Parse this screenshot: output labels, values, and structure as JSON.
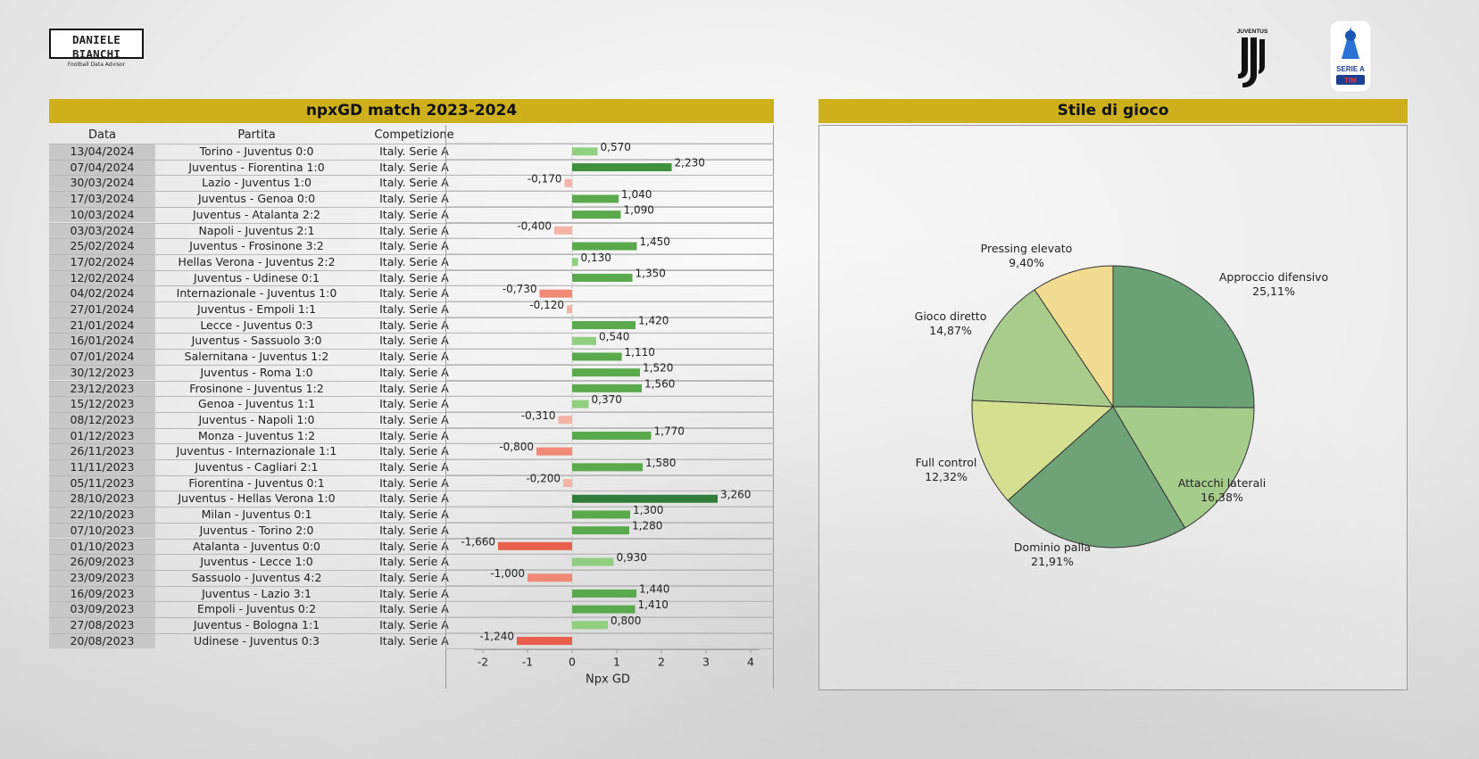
{
  "brand": {
    "name": "DANIELE BIANCHI",
    "tagline": "Football Data Advisor"
  },
  "logos": {
    "club": "JUVENTUS",
    "league_line1": "SERIE A",
    "league_line2": "TIM"
  },
  "table": {
    "title": "npxGD match 2023-2024",
    "headers": {
      "date": "Data",
      "match": "Partita",
      "competition": "Competizione"
    },
    "rows": [
      {
        "date": "13/04/2024",
        "match": "Torino - Juventus 0:0",
        "competition": "Italy. Serie A"
      },
      {
        "date": "07/04/2024",
        "match": "Juventus - Fiorentina 1:0",
        "competition": "Italy. Serie A"
      },
      {
        "date": "30/03/2024",
        "match": "Lazio - Juventus 1:0",
        "competition": "Italy. Serie A"
      },
      {
        "date": "17/03/2024",
        "match": "Juventus - Genoa 0:0",
        "competition": "Italy. Serie A"
      },
      {
        "date": "10/03/2024",
        "match": "Juventus - Atalanta 2:2",
        "competition": "Italy. Serie A"
      },
      {
        "date": "03/03/2024",
        "match": "Napoli - Juventus 2:1",
        "competition": "Italy. Serie A"
      },
      {
        "date": "25/02/2024",
        "match": "Juventus - Frosinone 3:2",
        "competition": "Italy. Serie A"
      },
      {
        "date": "17/02/2024",
        "match": "Hellas Verona - Juventus 2:2",
        "competition": "Italy. Serie A"
      },
      {
        "date": "12/02/2024",
        "match": "Juventus - Udinese 0:1",
        "competition": "Italy. Serie A"
      },
      {
        "date": "04/02/2024",
        "match": "Internazionale - Juventus 1:0",
        "competition": "Italy. Serie A"
      },
      {
        "date": "27/01/2024",
        "match": "Juventus - Empoli 1:1",
        "competition": "Italy. Serie A"
      },
      {
        "date": "21/01/2024",
        "match": "Lecce - Juventus 0:3",
        "competition": "Italy. Serie A"
      },
      {
        "date": "16/01/2024",
        "match": "Juventus - Sassuolo 3:0",
        "competition": "Italy. Serie A"
      },
      {
        "date": "07/01/2024",
        "match": "Salernitana - Juventus 1:2",
        "competition": "Italy. Serie A"
      },
      {
        "date": "30/12/2023",
        "match": "Juventus - Roma 1:0",
        "competition": "Italy. Serie A"
      },
      {
        "date": "23/12/2023",
        "match": "Frosinone - Juventus 1:2",
        "competition": "Italy. Serie A"
      },
      {
        "date": "15/12/2023",
        "match": "Genoa - Juventus 1:1",
        "competition": "Italy. Serie A"
      },
      {
        "date": "08/12/2023",
        "match": "Juventus - Napoli 1:0",
        "competition": "Italy. Serie A"
      },
      {
        "date": "01/12/2023",
        "match": "Monza - Juventus 1:2",
        "competition": "Italy. Serie A"
      },
      {
        "date": "26/11/2023",
        "match": "Juventus - Internazionale 1:1",
        "competition": "Italy. Serie A"
      },
      {
        "date": "11/11/2023",
        "match": "Juventus - Cagliari 2:1",
        "competition": "Italy. Serie A"
      },
      {
        "date": "05/11/2023",
        "match": "Fiorentina - Juventus 0:1",
        "competition": "Italy. Serie A"
      },
      {
        "date": "28/10/2023",
        "match": "Juventus - Hellas Verona 1:0",
        "competition": "Italy. Serie A"
      },
      {
        "date": "22/10/2023",
        "match": "Milan - Juventus 0:1",
        "competition": "Italy. Serie A"
      },
      {
        "date": "07/10/2023",
        "match": "Juventus - Torino 2:0",
        "competition": "Italy. Serie A"
      },
      {
        "date": "01/10/2023",
        "match": "Atalanta - Juventus 0:0",
        "competition": "Italy. Serie A"
      },
      {
        "date": "26/09/2023",
        "match": "Juventus - Lecce 1:0",
        "competition": "Italy. Serie A"
      },
      {
        "date": "23/09/2023",
        "match": "Sassuolo - Juventus 4:2",
        "competition": "Italy. Serie A"
      },
      {
        "date": "16/09/2023",
        "match": "Juventus - Lazio 3:1",
        "competition": "Italy. Serie A"
      },
      {
        "date": "03/09/2023",
        "match": "Empoli - Juventus 0:2",
        "competition": "Italy. Serie A"
      },
      {
        "date": "27/08/2023",
        "match": "Juventus - Bologna 1:1",
        "competition": "Italy. Serie A"
      },
      {
        "date": "20/08/2023",
        "match": "Udinese - Juventus 0:3",
        "competition": "Italy. Serie A"
      }
    ]
  },
  "pie_title": "Stile di gioco",
  "chart_data": [
    {
      "type": "bar",
      "orientation": "horizontal",
      "title": "npxGD match 2023-2024",
      "xlabel": "Npx GD",
      "xlim": [
        -2,
        4
      ],
      "xticks": [
        -2,
        -1,
        0,
        1,
        2,
        3,
        4
      ],
      "categories": [
        "13/04/2024",
        "07/04/2024",
        "30/03/2024",
        "17/03/2024",
        "10/03/2024",
        "03/03/2024",
        "25/02/2024",
        "17/02/2024",
        "12/02/2024",
        "04/02/2024",
        "27/01/2024",
        "21/01/2024",
        "16/01/2024",
        "07/01/2024",
        "30/12/2023",
        "23/12/2023",
        "15/12/2023",
        "08/12/2023",
        "01/12/2023",
        "26/11/2023",
        "11/11/2023",
        "05/11/2023",
        "28/10/2023",
        "22/10/2023",
        "07/10/2023",
        "01/10/2023",
        "26/09/2023",
        "23/09/2023",
        "16/09/2023",
        "03/09/2023",
        "27/08/2023",
        "20/08/2023"
      ],
      "values": [
        0.57,
        2.23,
        -0.17,
        1.04,
        1.09,
        -0.4,
        1.45,
        0.13,
        1.35,
        -0.73,
        -0.12,
        1.42,
        0.54,
        1.11,
        1.52,
        1.56,
        0.37,
        -0.31,
        1.77,
        -0.8,
        1.58,
        -0.2,
        3.26,
        1.3,
        1.28,
        -1.66,
        0.93,
        -1.0,
        1.44,
        1.41,
        0.8,
        -1.24
      ],
      "labels": [
        "0,570",
        "2,230",
        "-0,170",
        "1,040",
        "1,090",
        "-0,400",
        "1,450",
        "0,130",
        "1,350",
        "-0,730",
        "-0,120",
        "1,420",
        "0,540",
        "1,110",
        "1,520",
        "1,560",
        "0,370",
        "-0,310",
        "1,770",
        "-0,800",
        "1,580",
        "-0,200",
        "3,260",
        "1,300",
        "1,280",
        "-1,660",
        "0,930",
        "-1,000",
        "1,440",
        "1,410",
        "0,800",
        "-1,240"
      ],
      "grid": false,
      "colors": {
        "pos_light": "#8fcf7f",
        "pos_mid": "#5aa94d",
        "pos_dark": "#2f7d39",
        "neg_light": "#f4b3a6",
        "neg_mid": "#f08a76",
        "neg_dark": "#e8604c"
      }
    },
    {
      "type": "pie",
      "title": "Stile di gioco",
      "labels": [
        "Approccio difensivo",
        "Attacchi laterali",
        "Dominio palla",
        "Full control",
        "Gioco diretto",
        "Pressing elevato"
      ],
      "values": [
        25.11,
        16.38,
        21.91,
        12.32,
        14.87,
        9.4
      ],
      "value_labels": [
        "25,11%",
        "16,38%",
        "21,91%",
        "12,32%",
        "14,87%",
        "9,40%"
      ],
      "colors": [
        "#6aa276",
        "#a6cc8b",
        "#6fa377",
        "#d4df8f",
        "#a9cc8d",
        "#f2dc91"
      ],
      "legend": "none"
    }
  ]
}
